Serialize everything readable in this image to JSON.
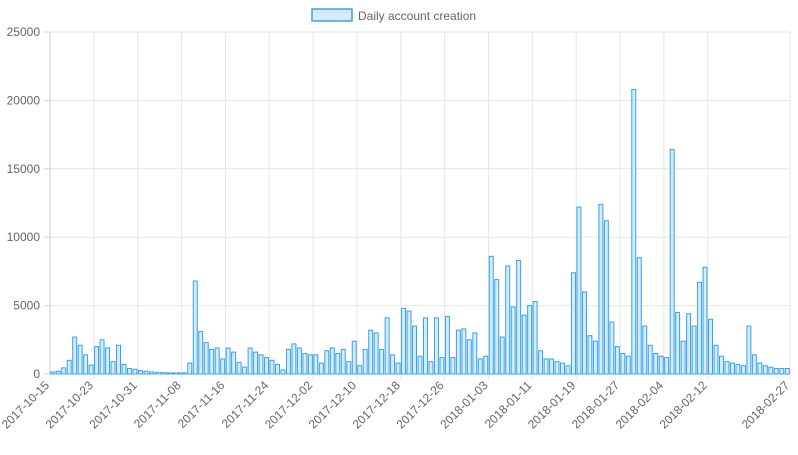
{
  "chart_data": {
    "type": "bar",
    "legend": {
      "label": "Daily account creation",
      "position": "top",
      "color": "#36a2eb",
      "fill": "#d7ecfb"
    },
    "bar_color": "#36a2eb",
    "bar_fill": "#d7ecfb",
    "grid": true,
    "ylim": [
      0,
      25000
    ],
    "yticks": [
      0,
      5000,
      10000,
      15000,
      20000,
      25000
    ],
    "x_start": "2017-10-15",
    "x_end": "2018-02-27",
    "xtick_labels": [
      "2017-10-15",
      "2017-10-23",
      "2017-10-31",
      "2017-11-08",
      "2017-11-16",
      "2017-11-24",
      "2017-12-02",
      "2017-12-10",
      "2017-12-18",
      "2017-12-26",
      "2018-01-03",
      "2018-01-11",
      "2018-01-19",
      "2018-01-27",
      "2018-02-04",
      "2018-02-12",
      "2018-02-27"
    ],
    "values": [
      150,
      200,
      450,
      1000,
      2700,
      2100,
      1400,
      650,
      2000,
      2500,
      1900,
      900,
      2100,
      700,
      400,
      350,
      250,
      200,
      150,
      120,
      100,
      80,
      80,
      80,
      80,
      800,
      6800,
      3100,
      2300,
      1800,
      1900,
      1100,
      1900,
      1600,
      850,
      500,
      1900,
      1600,
      1400,
      1200,
      1000,
      700,
      300,
      1800,
      2200,
      1900,
      1500,
      1400,
      1400,
      800,
      1700,
      1900,
      1500,
      1800,
      900,
      2400,
      600,
      1800,
      3200,
      3000,
      1800,
      4100,
      1400,
      800,
      4800,
      4600,
      3500,
      1300,
      4100,
      900,
      4100,
      1200,
      4200,
      1200,
      3200,
      3300,
      2500,
      3000,
      1100,
      1300,
      8600,
      6900,
      2700,
      7900,
      4900,
      8300,
      4300,
      5000,
      5300,
      1700,
      1100,
      1100,
      900,
      800,
      600,
      7400,
      12200,
      6000,
      2800,
      2400,
      12400,
      11200,
      3800,
      2000,
      1500,
      1300,
      20800,
      8500,
      3500,
      2100,
      1500,
      1300,
      1200,
      16400,
      4500,
      2400,
      4400,
      3500,
      6700,
      7800,
      4000,
      2100,
      1300,
      900,
      800,
      700,
      600,
      3500,
      1400,
      800,
      600,
      500,
      400,
      400,
      400
    ]
  }
}
